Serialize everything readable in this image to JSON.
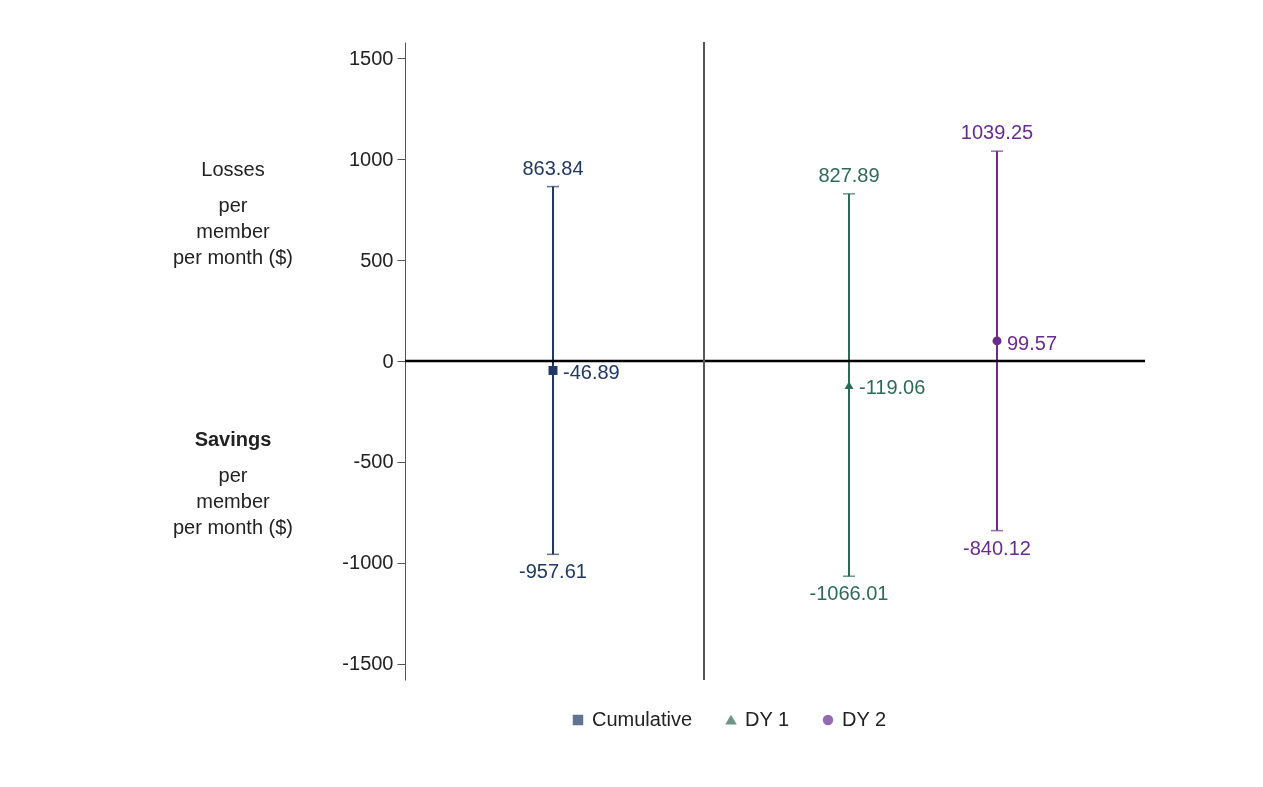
{
  "chart_data": {
    "type": "scatter",
    "categories": [
      null,
      null,
      null,
      null
    ],
    "ylim": [
      -1580,
      1580
    ],
    "yticks": [
      -1500,
      -1000,
      -500,
      0,
      500,
      1000,
      1500
    ],
    "tick_labels": "y",
    "legend": "bottom",
    "data_labels": true,
    "series": [
      {
        "name": "Cumulative",
        "color": "#1f3864",
        "marker": "square",
        "values": [
          -46.89,
          null,
          null,
          null
        ],
        "errors": [
          [
            -957.61,
            863.84
          ],
          null,
          null,
          null
        ]
      },
      {
        "name": "DY 1",
        "color": "#2e6b55",
        "marker": "triangle",
        "values": [
          null,
          null,
          -119.06,
          null
        ],
        "errors": [
          null,
          null,
          [
            -1066.01,
            827.89
          ],
          null
        ]
      },
      {
        "name": "DY 2",
        "color": "#6a2c91",
        "marker": "circle",
        "values": [
          null,
          null,
          null,
          99.57
        ],
        "errors": [
          null,
          null,
          null,
          [
            -840.12,
            1039.25
          ]
        ]
      }
    ],
    "ref_lines": [
      {
        "axis": "y",
        "value": 0,
        "color": "#000000"
      }
    ],
    "annotations": [
      "Losses\n\nper\nmember\nper month ($)",
      "Savings\n\nper\nmember\nper month ($)",
      {
        "text": "863.84",
        "y": 863.84
      },
      {
        "text": "-957.61",
        "y": -957.61
      },
      {
        "text": "827.89",
        "y": 827.89
      },
      {
        "text": "-1066.01",
        "y": -1066.01
      },
      {
        "text": "1039.25",
        "y": 1039.25
      },
      {
        "text": "-840.12",
        "y": -840.12
      }
    ]
  }
}
